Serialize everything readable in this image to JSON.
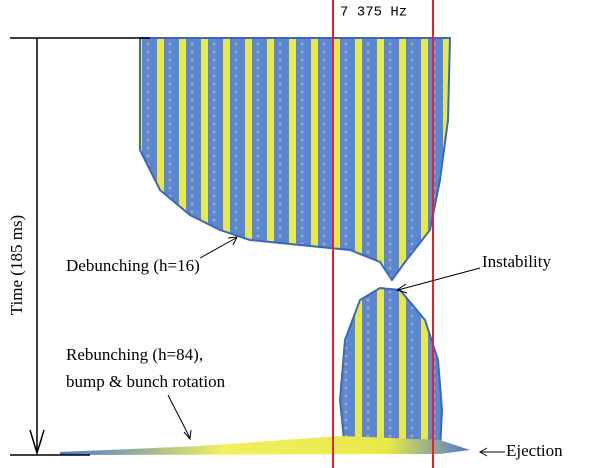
{
  "frequency_label": "7 375 Hz",
  "axis_label": "Time (185 ms)",
  "annotations": {
    "debunching": "Debunching (h=16)",
    "instability": "Instability",
    "rebunching_line1": "Rebunching (h=84),",
    "rebunching_line2": "bump & bunch rotation",
    "ejection": "Ejection"
  }
}
